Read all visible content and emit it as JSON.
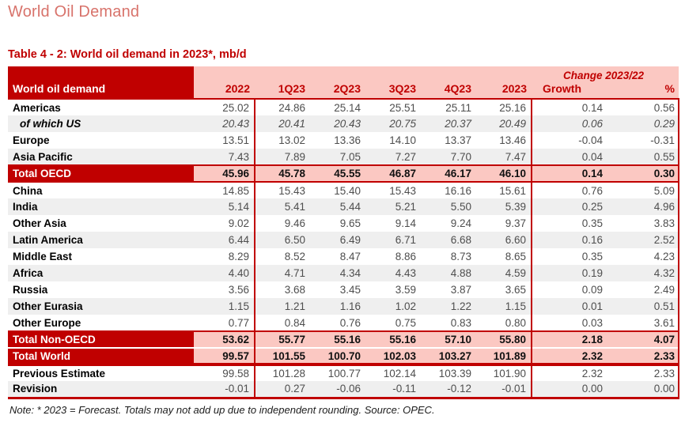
{
  "page_title": "World Oil Demand",
  "table_title": "Table 4 - 2: World oil demand in 2023*, mb/d",
  "note": "Note: * 2023 = Forecast. Totals may not add up due to independent rounding. Source: OPEC.",
  "colors": {
    "dark_red": "#C00000",
    "pink_fill": "#FBC8C2",
    "stripe_gray": "#EFEFEF",
    "title_salmon": "#D8736B"
  },
  "chart_data": {
    "type": "table",
    "title": "Table 4 - 2: World oil demand in 2023*, mb/d",
    "units": "mb/d",
    "header": {
      "label": "World oil demand",
      "columns": [
        "2022",
        "1Q23",
        "2Q23",
        "3Q23",
        "4Q23",
        "2023"
      ],
      "change_group": "Change 2023/22",
      "change_columns": [
        "Growth",
        "%"
      ]
    },
    "rows": [
      {
        "label": "Americas",
        "style": "normal",
        "striped": false,
        "values": [
          "25.02",
          "24.86",
          "25.14",
          "25.51",
          "25.11",
          "25.16",
          "0.14",
          "0.56"
        ]
      },
      {
        "label": "of which US",
        "style": "sub",
        "striped": true,
        "values": [
          "20.43",
          "20.41",
          "20.43",
          "20.75",
          "20.37",
          "20.49",
          "0.06",
          "0.29"
        ]
      },
      {
        "label": "Europe",
        "style": "normal",
        "striped": false,
        "values": [
          "13.51",
          "13.02",
          "13.36",
          "14.10",
          "13.37",
          "13.46",
          "-0.04",
          "-0.31"
        ]
      },
      {
        "label": "Asia Pacific",
        "style": "normal",
        "striped": true,
        "values": [
          "7.43",
          "7.89",
          "7.05",
          "7.27",
          "7.70",
          "7.47",
          "0.04",
          "0.55"
        ]
      },
      {
        "label": "Total OECD",
        "style": "total",
        "striped": false,
        "values": [
          "45.96",
          "45.78",
          "45.55",
          "46.87",
          "46.17",
          "46.10",
          "0.14",
          "0.30"
        ]
      },
      {
        "label": "China",
        "style": "normal",
        "striped": false,
        "values": [
          "14.85",
          "15.43",
          "15.40",
          "15.43",
          "16.16",
          "15.61",
          "0.76",
          "5.09"
        ]
      },
      {
        "label": "India",
        "style": "normal",
        "striped": true,
        "values": [
          "5.14",
          "5.41",
          "5.44",
          "5.21",
          "5.50",
          "5.39",
          "0.25",
          "4.96"
        ]
      },
      {
        "label": "Other Asia",
        "style": "normal",
        "striped": false,
        "values": [
          "9.02",
          "9.46",
          "9.65",
          "9.14",
          "9.24",
          "9.37",
          "0.35",
          "3.83"
        ]
      },
      {
        "label": "Latin America",
        "style": "normal",
        "striped": true,
        "values": [
          "6.44",
          "6.50",
          "6.49",
          "6.71",
          "6.68",
          "6.60",
          "0.16",
          "2.52"
        ]
      },
      {
        "label": "Middle East",
        "style": "normal",
        "striped": false,
        "values": [
          "8.29",
          "8.52",
          "8.47",
          "8.86",
          "8.73",
          "8.65",
          "0.35",
          "4.23"
        ]
      },
      {
        "label": "Africa",
        "style": "normal",
        "striped": true,
        "values": [
          "4.40",
          "4.71",
          "4.34",
          "4.43",
          "4.88",
          "4.59",
          "0.19",
          "4.32"
        ]
      },
      {
        "label": "Russia",
        "style": "normal",
        "striped": false,
        "values": [
          "3.56",
          "3.68",
          "3.45",
          "3.59",
          "3.87",
          "3.65",
          "0.09",
          "2.49"
        ]
      },
      {
        "label": "Other Eurasia",
        "style": "normal",
        "striped": true,
        "values": [
          "1.15",
          "1.21",
          "1.16",
          "1.02",
          "1.22",
          "1.15",
          "0.01",
          "0.51"
        ]
      },
      {
        "label": "Other Europe",
        "style": "normal",
        "striped": false,
        "values": [
          "0.77",
          "0.84",
          "0.76",
          "0.75",
          "0.83",
          "0.80",
          "0.03",
          "3.61"
        ]
      },
      {
        "label": "Total Non-OECD",
        "style": "total2",
        "striped": false,
        "values": [
          "53.62",
          "55.77",
          "55.16",
          "55.16",
          "57.10",
          "55.80",
          "2.18",
          "4.07"
        ]
      },
      {
        "label": "Total World",
        "style": "world",
        "striped": false,
        "values": [
          "99.57",
          "101.55",
          "100.70",
          "102.03",
          "103.27",
          "101.89",
          "2.32",
          "2.33"
        ]
      },
      {
        "label": "Previous Estimate",
        "style": "estimate",
        "striped": false,
        "values": [
          "99.58",
          "101.28",
          "100.77",
          "102.14",
          "103.39",
          "101.90",
          "2.32",
          "2.33"
        ]
      },
      {
        "label": "Revision",
        "style": "revision",
        "striped": true,
        "values": [
          "-0.01",
          "0.27",
          "-0.06",
          "-0.11",
          "-0.12",
          "-0.01",
          "0.00",
          "0.00"
        ]
      }
    ]
  }
}
